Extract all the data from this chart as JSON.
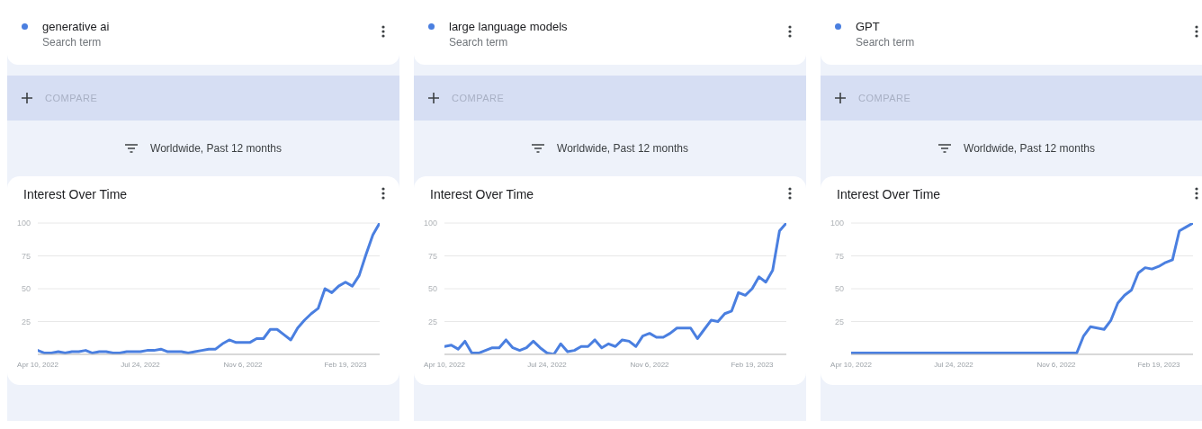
{
  "chart_data": [
    {
      "type": "line",
      "title": "Interest Over Time",
      "annotations": [
        "Search term",
        "COMPARE",
        "Worldwide, Past 12 months"
      ],
      "legend": "top left",
      "grid": "y",
      "ylim": [
        0,
        100
      ],
      "yticks": [
        25,
        50,
        75,
        100
      ],
      "xlim": [
        "2022-04-10",
        "2023-03-26"
      ],
      "xticks": [
        {
          "value": "2022-04-10",
          "label": "Apr 10, 2022"
        },
        {
          "value": "2022-07-24",
          "label": "Jul 24, 2022"
        },
        {
          "value": "2022-11-06",
          "label": "Nov 6, 2022"
        },
        {
          "value": "2023-02-19",
          "label": "Feb 19, 2023"
        }
      ],
      "x": [
        "2022-04-10",
        "2022-04-17",
        "2022-04-24",
        "2022-05-01",
        "2022-05-08",
        "2022-05-15",
        "2022-05-22",
        "2022-05-29",
        "2022-06-05",
        "2022-06-12",
        "2022-06-19",
        "2022-06-26",
        "2022-07-03",
        "2022-07-10",
        "2022-07-17",
        "2022-07-24",
        "2022-07-31",
        "2022-08-07",
        "2022-08-14",
        "2022-08-21",
        "2022-08-28",
        "2022-09-04",
        "2022-09-11",
        "2022-09-18",
        "2022-09-25",
        "2022-10-02",
        "2022-10-09",
        "2022-10-16",
        "2022-10-23",
        "2022-10-30",
        "2022-11-06",
        "2022-11-13",
        "2022-11-20",
        "2022-11-27",
        "2022-12-04",
        "2022-12-11",
        "2022-12-18",
        "2022-12-25",
        "2023-01-01",
        "2023-01-08",
        "2023-01-15",
        "2023-01-22",
        "2023-01-29",
        "2023-02-05",
        "2023-02-12",
        "2023-02-19",
        "2023-02-26",
        "2023-03-05",
        "2023-03-12",
        "2023-03-19",
        "2023-03-26"
      ],
      "series": [
        {
          "name": "generative ai",
          "color": "#4a7fe0",
          "values": [
            3,
            1,
            1,
            2,
            1,
            2,
            2,
            3,
            1,
            2,
            2,
            1,
            1,
            2,
            2,
            2,
            3,
            3,
            4,
            2,
            2,
            2,
            1,
            2,
            3,
            4,
            4,
            8,
            11,
            9,
            9,
            9,
            12,
            12,
            19,
            19,
            15,
            11,
            20,
            26,
            31,
            35,
            50,
            47,
            52,
            55,
            52,
            60,
            76,
            91,
            100
          ]
        }
      ]
    },
    {
      "type": "line",
      "title": "Interest Over Time",
      "annotations": [
        "Search term",
        "COMPARE",
        "Worldwide, Past 12 months"
      ],
      "legend": "top left",
      "grid": "y",
      "ylim": [
        0,
        100
      ],
      "yticks": [
        25,
        50,
        75,
        100
      ],
      "xlim": [
        "2022-04-10",
        "2023-03-26"
      ],
      "xticks": [
        {
          "value": "2022-04-10",
          "label": "Apr 10, 2022"
        },
        {
          "value": "2022-07-24",
          "label": "Jul 24, 2022"
        },
        {
          "value": "2022-11-06",
          "label": "Nov 6, 2022"
        },
        {
          "value": "2023-02-19",
          "label": "Feb 19, 2023"
        }
      ],
      "x": [
        "2022-04-10",
        "2022-04-17",
        "2022-04-24",
        "2022-05-01",
        "2022-05-08",
        "2022-05-15",
        "2022-05-22",
        "2022-05-29",
        "2022-06-05",
        "2022-06-12",
        "2022-06-19",
        "2022-06-26",
        "2022-07-03",
        "2022-07-10",
        "2022-07-17",
        "2022-07-24",
        "2022-07-31",
        "2022-08-07",
        "2022-08-14",
        "2022-08-21",
        "2022-08-28",
        "2022-09-04",
        "2022-09-11",
        "2022-09-18",
        "2022-09-25",
        "2022-10-02",
        "2022-10-09",
        "2022-10-16",
        "2022-10-23",
        "2022-10-30",
        "2022-11-06",
        "2022-11-13",
        "2022-11-20",
        "2022-11-27",
        "2022-12-04",
        "2022-12-11",
        "2022-12-18",
        "2022-12-25",
        "2023-01-01",
        "2023-01-08",
        "2023-01-15",
        "2023-01-22",
        "2023-01-29",
        "2023-02-05",
        "2023-02-12",
        "2023-02-19",
        "2023-02-26",
        "2023-03-05",
        "2023-03-12",
        "2023-03-19",
        "2023-03-26"
      ],
      "series": [
        {
          "name": "large language models",
          "color": "#4a7fe0",
          "values": [
            6,
            7,
            4,
            10,
            1,
            1,
            3,
            5,
            5,
            11,
            5,
            3,
            5,
            10,
            5,
            1,
            0,
            8,
            2,
            3,
            6,
            6,
            11,
            5,
            8,
            6,
            11,
            10,
            6,
            14,
            16,
            13,
            13,
            16,
            20,
            20,
            20,
            12,
            19,
            26,
            25,
            31,
            33,
            47,
            45,
            50,
            59,
            55,
            64,
            94,
            100
          ]
        }
      ]
    },
    {
      "type": "line",
      "title": "Interest Over Time",
      "annotations": [
        "Search term",
        "COMPARE",
        "Worldwide, Past 12 months"
      ],
      "legend": "top left",
      "grid": "y",
      "ylim": [
        0,
        100
      ],
      "yticks": [
        25,
        50,
        75,
        100
      ],
      "xlim": [
        "2022-04-10",
        "2023-03-26"
      ],
      "xticks": [
        {
          "value": "2022-04-10",
          "label": "Apr 10, 2022"
        },
        {
          "value": "2022-07-24",
          "label": "Jul 24, 2022"
        },
        {
          "value": "2022-11-06",
          "label": "Nov 6, 2022"
        },
        {
          "value": "2023-02-19",
          "label": "Feb 19, 2023"
        }
      ],
      "x": [
        "2022-04-10",
        "2022-04-17",
        "2022-04-24",
        "2022-05-01",
        "2022-05-08",
        "2022-05-15",
        "2022-05-22",
        "2022-05-29",
        "2022-06-05",
        "2022-06-12",
        "2022-06-19",
        "2022-06-26",
        "2022-07-03",
        "2022-07-10",
        "2022-07-17",
        "2022-07-24",
        "2022-07-31",
        "2022-08-07",
        "2022-08-14",
        "2022-08-21",
        "2022-08-28",
        "2022-09-04",
        "2022-09-11",
        "2022-09-18",
        "2022-09-25",
        "2022-10-02",
        "2022-10-09",
        "2022-10-16",
        "2022-10-23",
        "2022-10-30",
        "2022-11-06",
        "2022-11-13",
        "2022-11-20",
        "2022-11-27",
        "2022-12-04",
        "2022-12-11",
        "2022-12-18",
        "2022-12-25",
        "2023-01-01",
        "2023-01-08",
        "2023-01-15",
        "2023-01-22",
        "2023-01-29",
        "2023-02-05",
        "2023-02-12",
        "2023-02-19",
        "2023-02-26",
        "2023-03-05",
        "2023-03-12",
        "2023-03-19",
        "2023-03-26"
      ],
      "series": [
        {
          "name": "GPT",
          "color": "#4a7fe0",
          "values": [
            1,
            1,
            1,
            1,
            1,
            1,
            1,
            1,
            1,
            1,
            1,
            1,
            1,
            1,
            1,
            1,
            1,
            1,
            1,
            1,
            1,
            1,
            1,
            1,
            1,
            1,
            1,
            1,
            1,
            1,
            1,
            1,
            1,
            1,
            14,
            21,
            20,
            19,
            26,
            39,
            45,
            49,
            62,
            66,
            65,
            67,
            70,
            72,
            94,
            97,
            100
          ]
        }
      ]
    }
  ]
}
